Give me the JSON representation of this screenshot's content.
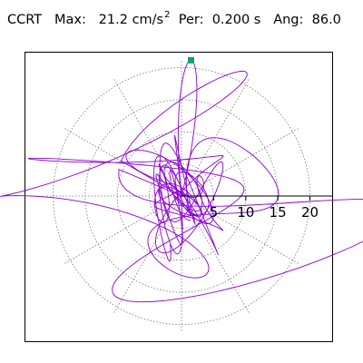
{
  "header": {
    "title": "CCRT",
    "max_label": "Max:",
    "max_value": "21.2",
    "max_unit": "cm/s",
    "max_exp": "2",
    "per_label": "Per:",
    "per_value": "0.200 s",
    "ang_label": "Ang:",
    "ang_value": "86.0"
  },
  "chart_data": {
    "type": "polar-hodograph",
    "title": "CCRT",
    "radial_ticks": [
      "5",
      "10",
      "15",
      "20"
    ],
    "radial_tick_values": [
      5,
      10,
      15,
      20
    ],
    "r_max": 21.2,
    "angular_grid_step_deg": 30,
    "grid": true,
    "peak_marker": {
      "r": 21.2,
      "angle_deg": 86.0
    },
    "colors": {
      "trace": "#8b00d6",
      "marker": "#0f9e7a",
      "grid": "#777777",
      "axis": "#000000"
    }
  }
}
